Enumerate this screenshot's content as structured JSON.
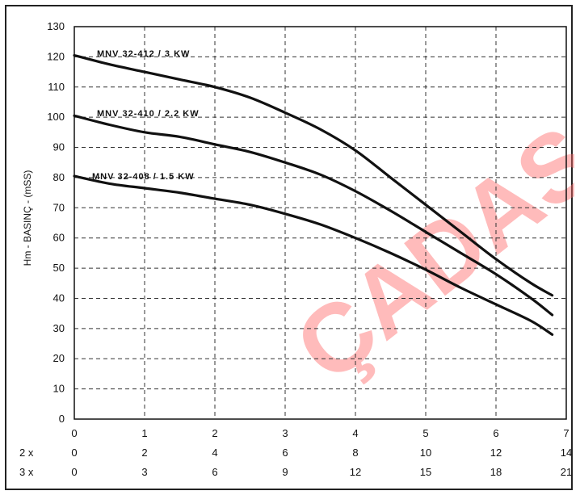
{
  "chart_data": {
    "type": "line",
    "title": "",
    "ylabel": "Hm - BASINÇ - (mSS)",
    "xlabel": "",
    "xlim": [
      0,
      7
    ],
    "ylim": [
      0,
      130
    ],
    "grid": true,
    "y_ticks": [
      "0",
      "10",
      "20",
      "30",
      "40",
      "50",
      "60",
      "70",
      "80",
      "90",
      "100",
      "110",
      "120",
      "130"
    ],
    "x_ticks": [
      "0",
      "1",
      "2",
      "3",
      "4",
      "5",
      "6",
      "7"
    ],
    "extra_x_rows": [
      {
        "label": "2 x",
        "ticks": [
          "0",
          "2",
          "4",
          "6",
          "8",
          "10",
          "12",
          "14"
        ]
      },
      {
        "label": "3 x",
        "ticks": [
          "0",
          "3",
          "6",
          "9",
          "12",
          "15",
          "18",
          "21"
        ]
      }
    ],
    "watermark": "ÇADAŞ",
    "series": [
      {
        "name": "MNV 32-412 / 3 KW",
        "x": [
          0,
          0.5,
          1,
          1.5,
          2,
          2.5,
          3,
          3.5,
          4,
          4.5,
          5,
          5.5,
          6,
          6.5,
          6.8
        ],
        "y": [
          120.5,
          117.5,
          115,
          112.5,
          110,
          106.5,
          101.5,
          96,
          89,
          80,
          71,
          62,
          53,
          45,
          41
        ]
      },
      {
        "name": "MNV 32-410 / 2.2 KW",
        "x": [
          0,
          0.5,
          1,
          1.5,
          2,
          2.5,
          3,
          3.5,
          4,
          4.5,
          5,
          5.5,
          6,
          6.5,
          6.8
        ],
        "y": [
          100.5,
          97.5,
          95,
          93.5,
          91,
          88.5,
          85,
          81,
          75.5,
          69,
          62,
          55,
          48,
          40,
          34.5
        ]
      },
      {
        "name": "MNV 32-408 / 1.5 KW",
        "x": [
          0,
          0.5,
          1,
          1.5,
          2,
          2.5,
          3,
          3.5,
          4,
          4.5,
          5,
          5.5,
          6,
          6.5,
          6.8
        ],
        "y": [
          80.5,
          78,
          76.5,
          75,
          73,
          71,
          68,
          64.5,
          60,
          55,
          49.5,
          43.5,
          38,
          32.5,
          28
        ]
      }
    ]
  }
}
